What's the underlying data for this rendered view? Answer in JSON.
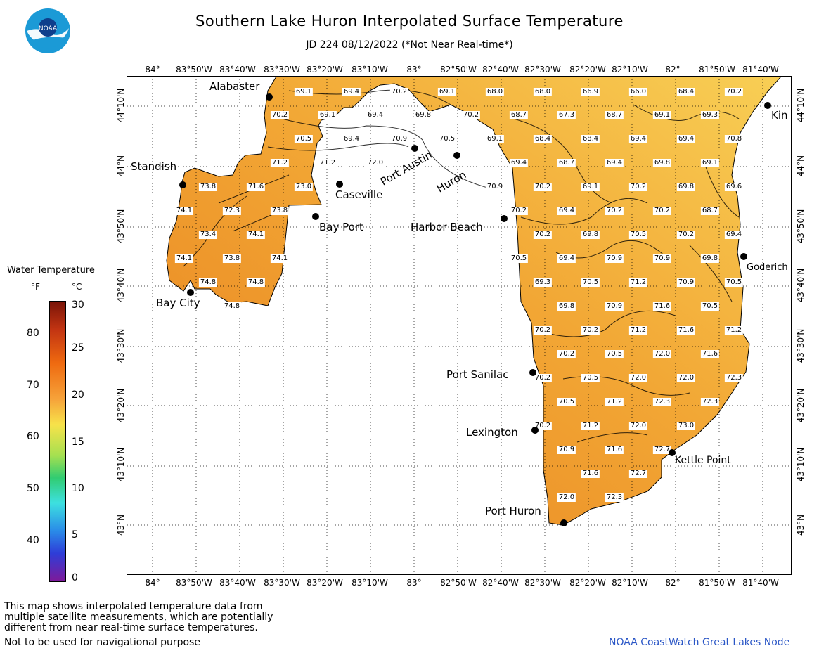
{
  "header": {
    "title": "Southern Lake Huron Interpolated Surface Temperature",
    "subtitle": "JD 224 08/12/2022 (*Not Near Real-time*)"
  },
  "logo": {
    "text": "NOAA"
  },
  "axes": {
    "longitude_labels": [
      "84°",
      "83°50'W",
      "83°40'W",
      "83°30'W",
      "83°20'W",
      "83°10'W",
      "83°",
      "82°50'W",
      "82°40'W",
      "82°30'W",
      "82°20'W",
      "82°10'W",
      "82°",
      "81°50'W",
      "81°40'W"
    ],
    "latitude_labels": [
      "44°10'N",
      "44°N",
      "43°50'N",
      "43°40'N",
      "43°30'N",
      "43°20'N",
      "43°10'N",
      "43°N"
    ]
  },
  "cities": [
    {
      "name": "Alabaster"
    },
    {
      "name": "Standish"
    },
    {
      "name": "Caseville"
    },
    {
      "name": "Port Austin"
    },
    {
      "name": "Huron"
    },
    {
      "name": "Bay Port"
    },
    {
      "name": "Harbor Beach"
    },
    {
      "name": "Bay City"
    },
    {
      "name": "Port Sanilac"
    },
    {
      "name": "Lexington"
    },
    {
      "name": "Kettle Point"
    },
    {
      "name": "Port Huron"
    },
    {
      "name": "Goderich"
    },
    {
      "name": "Kin"
    }
  ],
  "temperature_values": [
    "69.1",
    "69.4",
    "70.2",
    "69.1",
    "68.0",
    "68.0",
    "66.9",
    "66.0",
    "68.4",
    "70.2",
    "70.2",
    "69.1",
    "69.4",
    "69.8",
    "70.2",
    "68.7",
    "67.3",
    "68.7",
    "69.1",
    "69.3",
    "70.5",
    "69.4",
    "70.9",
    "70.5",
    "69.1",
    "68.4",
    "68.4",
    "69.4",
    "69.4",
    "70.8",
    "71.2",
    "71.2",
    "72.0",
    "69.4",
    "68.7",
    "69.4",
    "69.8",
    "69.1",
    "73.8",
    "71.6",
    "73.0",
    "70.9",
    "70.2",
    "69.1",
    "70.2",
    "69.8",
    "69.6",
    "74.1",
    "72.3",
    "73.8",
    "70.2",
    "69.4",
    "70.2",
    "70.2",
    "68.7",
    "73.4",
    "74.1",
    "70.2",
    "69.8",
    "70.5",
    "70.2",
    "69.4",
    "74.1",
    "73.8",
    "74.1",
    "70.5",
    "69.4",
    "70.9",
    "70.9",
    "69.8",
    "74.8",
    "74.8",
    "69.3",
    "70.5",
    "71.2",
    "70.9",
    "70.5",
    "74.8",
    "69.8",
    "70.9",
    "71.6",
    "70.5",
    "70.2",
    "70.2",
    "71.2",
    "71.6",
    "71.2",
    "70.2",
    "70.5",
    "72.0",
    "71.6",
    "70.2",
    "70.5",
    "72.0",
    "72.0",
    "72.3",
    "70.5",
    "71.2",
    "72.3",
    "72.3",
    "70.2",
    "71.2",
    "72.0",
    "73.0",
    "70.9",
    "71.6",
    "72.7",
    "71.6",
    "72.7",
    "72.0",
    "72.3"
  ],
  "legend": {
    "title": "Water Temperature",
    "unit_f": "°F",
    "unit_c": "°C",
    "f_ticks": [
      "80",
      "70",
      "60",
      "50",
      "40"
    ],
    "c_ticks": [
      "30",
      "25",
      "20",
      "15",
      "10",
      "5",
      "0"
    ]
  },
  "footer": {
    "note_1": "This map shows interpolated temperature data from",
    "note_2": "multiple satellite measurements, which are potentially",
    "note_3": "different from near real-time surface temperatures.",
    "note_4": "Not to be used for navigational purpose",
    "credit": "NOAA CoastWatch Great Lakes Node"
  },
  "colors": {
    "water_light": "#f6c24a",
    "water_mid": "#f0a030",
    "water_warm": "#e9801e",
    "land": "#ffffff"
  }
}
